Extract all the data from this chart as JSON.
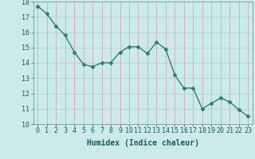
{
  "x": [
    0,
    1,
    2,
    3,
    4,
    5,
    6,
    7,
    8,
    9,
    10,
    11,
    12,
    13,
    14,
    15,
    16,
    17,
    18,
    19,
    20,
    21,
    22,
    23
  ],
  "y": [
    17.7,
    17.2,
    16.4,
    15.8,
    14.7,
    13.9,
    13.75,
    14.0,
    14.0,
    14.7,
    15.05,
    15.05,
    14.6,
    15.35,
    14.9,
    13.2,
    12.35,
    12.35,
    11.0,
    11.35,
    11.7,
    11.45,
    10.95,
    10.5
  ],
  "line_color": "#2e7d6e",
  "marker": "D",
  "marker_size": 2.5,
  "bg_color": "#cdeaea",
  "grid_color_horiz": "#b0cccc",
  "grid_color_vert": "#d4a0a0",
  "xlabel": "Humidex (Indice chaleur)",
  "xlim": [
    -0.5,
    23.5
  ],
  "ylim": [
    10,
    18
  ],
  "yticks": [
    10,
    11,
    12,
    13,
    14,
    15,
    16,
    17,
    18
  ],
  "xticks": [
    0,
    1,
    2,
    3,
    4,
    5,
    6,
    7,
    8,
    9,
    10,
    11,
    12,
    13,
    14,
    15,
    16,
    17,
    18,
    19,
    20,
    21,
    22,
    23
  ],
  "xtick_labels": [
    "0",
    "1",
    "2",
    "3",
    "4",
    "5",
    "6",
    "7",
    "8",
    "9",
    "10",
    "11",
    "12",
    "13",
    "14",
    "15",
    "16",
    "17",
    "18",
    "19",
    "20",
    "21",
    "22",
    "23"
  ],
  "xlabel_fontsize": 7,
  "tick_fontsize": 6,
  "line_width": 1.0
}
